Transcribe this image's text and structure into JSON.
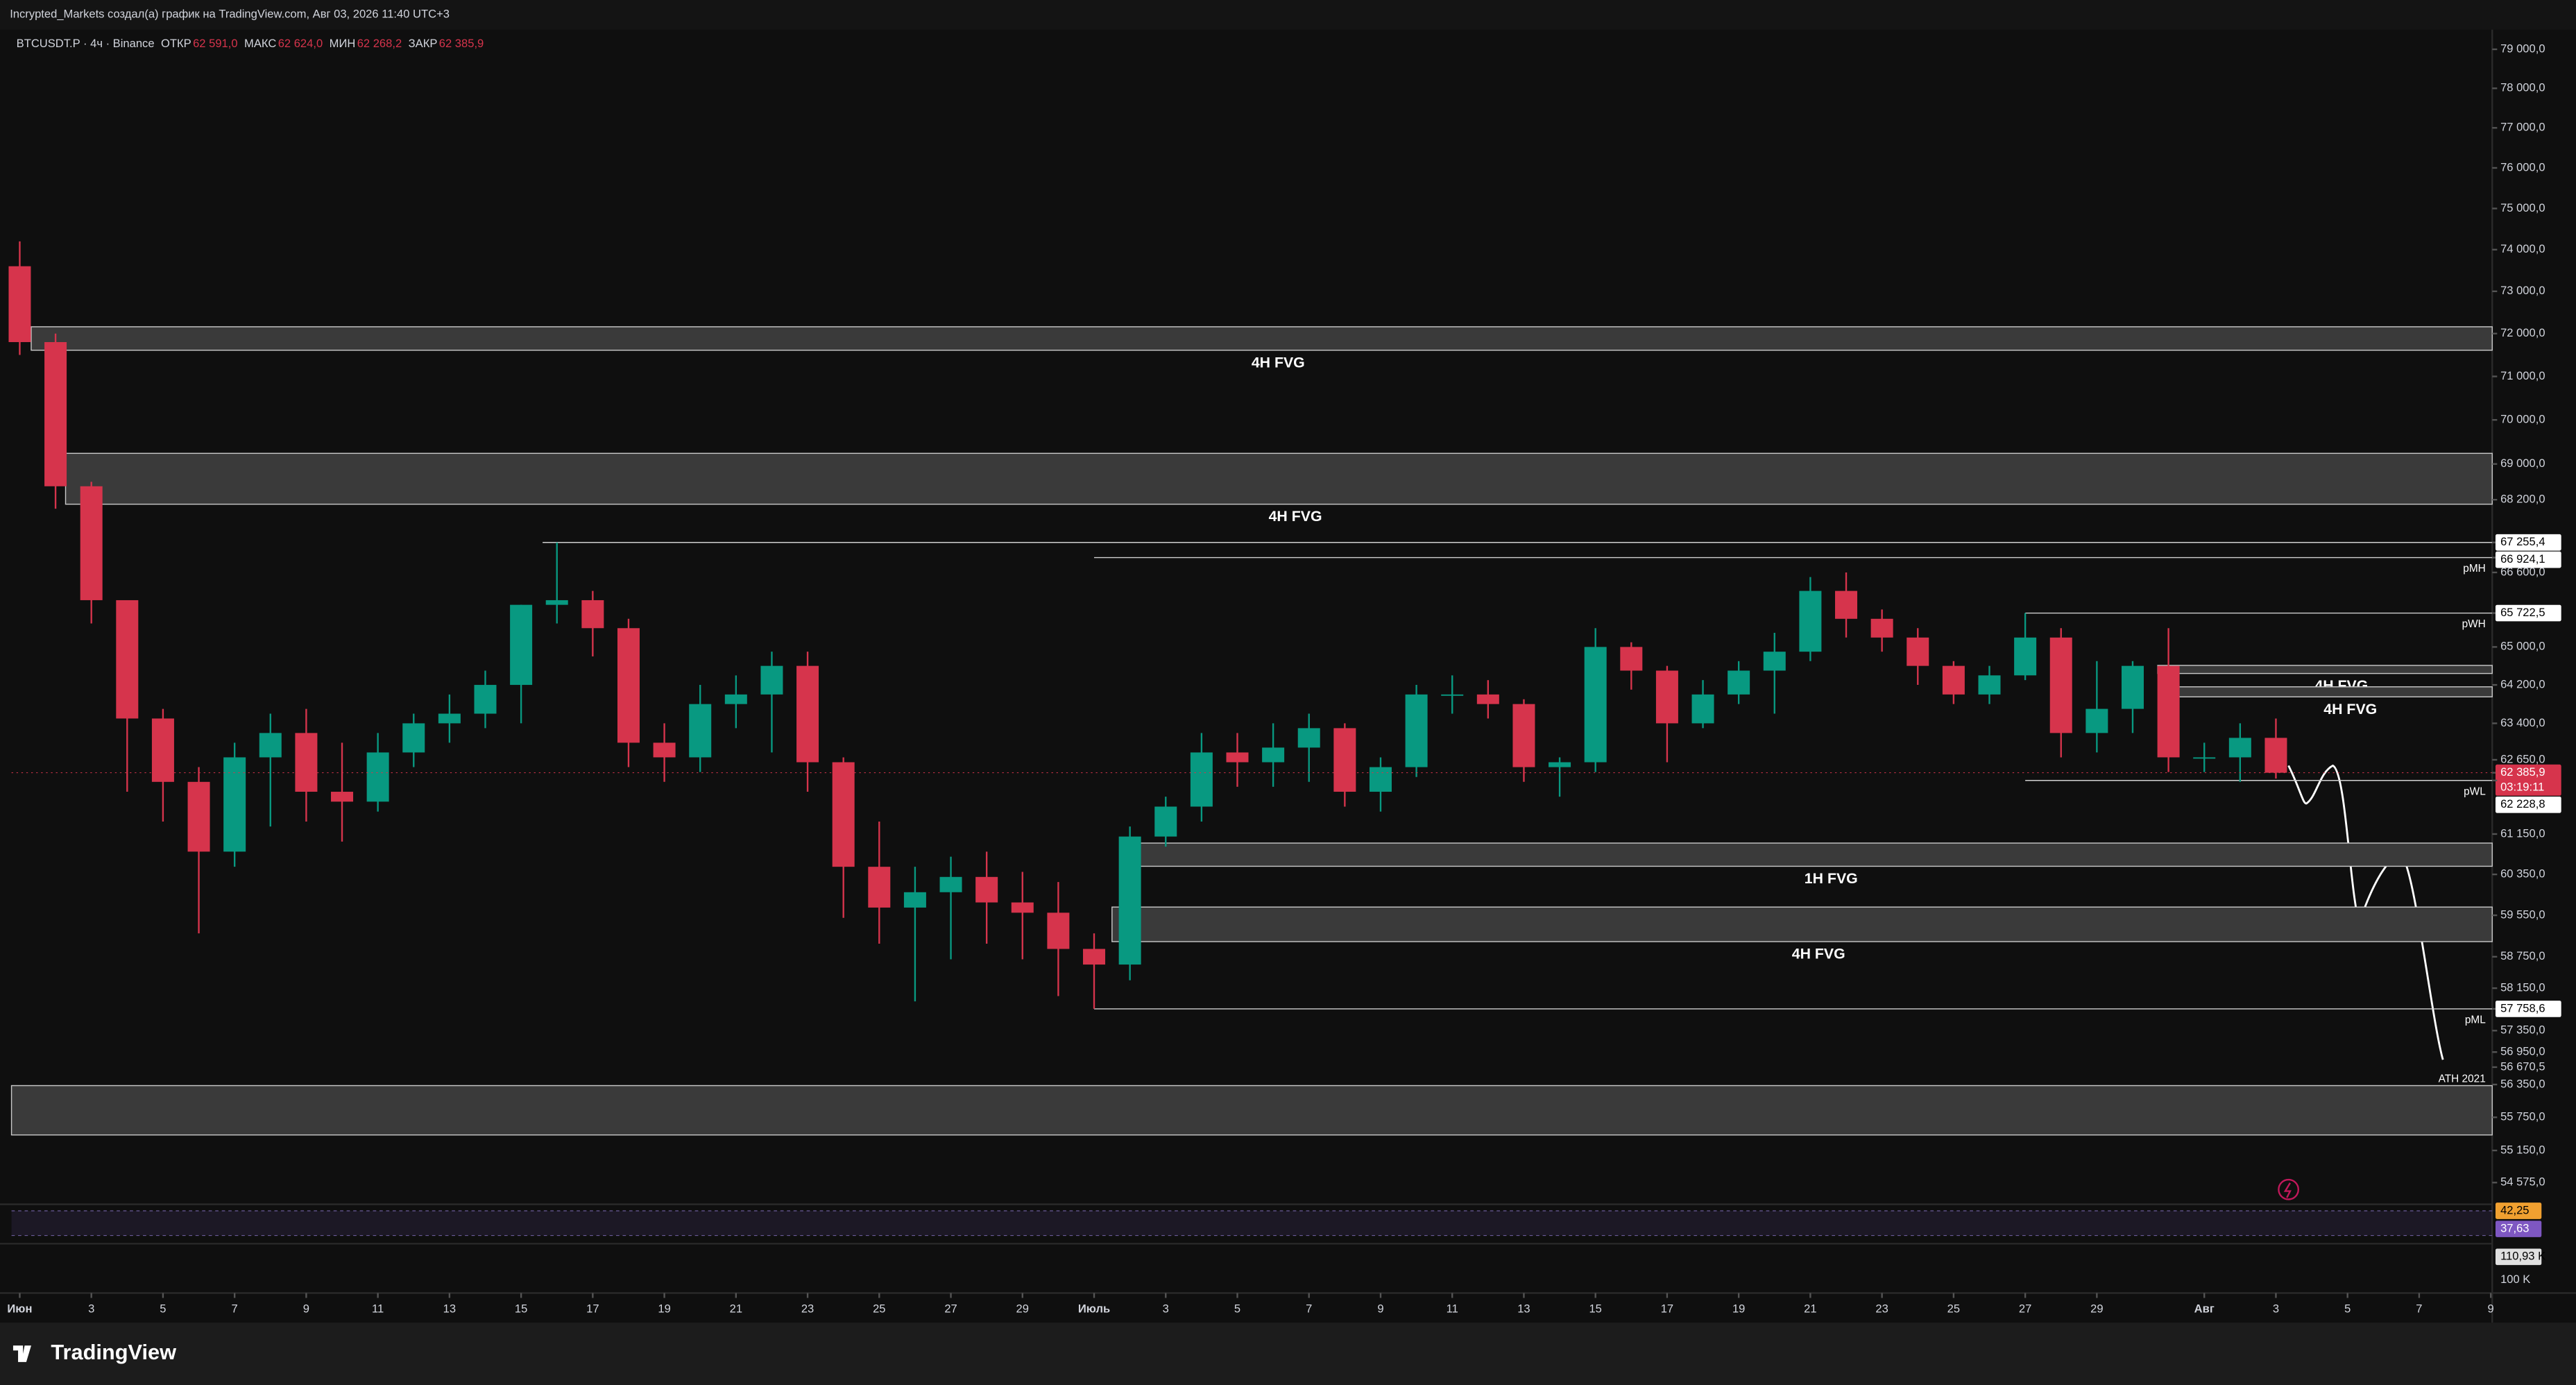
{
  "header": {
    "title": "Incrypted_Markets создал(а) график на TradingView.com, Авг 03, 2026 11:40 UTC+3"
  },
  "chart_data": {
    "type": "candlestick",
    "symbol": "BTCUSDT.P · 4ч · Binance",
    "ohlc_legend": [
      {
        "label": "ОТКР",
        "value": "62 591,0"
      },
      {
        "label": "МАКС",
        "value": "62 624,0"
      },
      {
        "label": "МИН",
        "value": "62 268,2"
      },
      {
        "label": "ЗАКР",
        "value": "62 385,9"
      }
    ],
    "log_scale": true,
    "up_color": "#089981",
    "down_color": "#d6344c",
    "x": [
      0,
      1,
      2,
      3,
      4,
      5,
      6,
      7,
      8,
      9,
      10,
      11,
      12,
      13,
      14,
      15,
      16,
      17,
      18,
      19,
      20,
      21,
      22,
      23,
      24,
      25,
      26,
      27,
      28,
      29,
      30,
      31,
      32,
      33,
      34,
      35,
      36,
      37,
      38,
      39,
      40,
      41,
      42,
      43,
      44,
      45,
      46,
      47,
      48,
      49,
      50,
      51,
      52,
      53,
      54,
      55,
      56,
      57,
      58,
      59,
      60,
      61,
      62,
      63
    ],
    "open": [
      73600,
      71800,
      68500,
      66000,
      63500,
      62200,
      60800,
      62700,
      63200,
      62000,
      61800,
      62800,
      63400,
      63600,
      64200,
      65900,
      66000,
      65400,
      63000,
      62700,
      63800,
      64000,
      64600,
      62600,
      60500,
      59700,
      60000,
      60300,
      59800,
      59600,
      58900,
      58600,
      61100,
      61700,
      62800,
      62600,
      62900,
      63300,
      62000,
      62500,
      64000,
      64000,
      63800,
      62500,
      62600,
      65000,
      64500,
      63400,
      64000,
      64500,
      64900,
      66200,
      65600,
      65200,
      64600,
      64000,
      64400,
      65200,
      63200,
      63700,
      64600,
      62700,
      62700,
      63100
    ],
    "high": [
      74200,
      72000,
      68600,
      66000,
      63700,
      62500,
      63000,
      63600,
      63700,
      63000,
      63200,
      63600,
      64000,
      64500,
      65900,
      67255.4,
      66200,
      65600,
      63400,
      64200,
      64400,
      64900,
      64900,
      62700,
      61400,
      60500,
      60700,
      60800,
      60400,
      60200,
      59200,
      61300,
      61900,
      63200,
      63200,
      63400,
      63600,
      63400,
      62700,
      64200,
      64400,
      64300,
      63900,
      62700,
      65400,
      65100,
      64600,
      64300,
      64700,
      65300,
      66500,
      66600,
      65800,
      65400,
      64700,
      64600,
      65722.5,
      65400,
      64700,
      64700,
      65400,
      63000,
      63400,
      63500
    ],
    "low": [
      71500,
      68000,
      65500,
      62000,
      61400,
      59200,
      60500,
      61300,
      61400,
      61000,
      61600,
      62500,
      63000,
      63300,
      63400,
      65500,
      64800,
      62500,
      62200,
      62400,
      63300,
      62800,
      62000,
      59500,
      59000,
      57900,
      58700,
      59000,
      58700,
      58000,
      57758.6,
      58300,
      60900,
      61400,
      62100,
      62100,
      62200,
      61700,
      61600,
      62300,
      63600,
      63500,
      62200,
      61900,
      62400,
      64100,
      62600,
      63300,
      63800,
      63600,
      64700,
      65200,
      64900,
      64200,
      63800,
      63800,
      64300,
      62700,
      62800,
      63200,
      62400,
      62400,
      62200,
      62268.2
    ],
    "close": [
      71800,
      68500,
      66000,
      63500,
      62200,
      60800,
      62700,
      63200,
      62000,
      61800,
      62800,
      63400,
      63600,
      64200,
      65900,
      66000,
      65400,
      63000,
      62700,
      63800,
      64000,
      64600,
      62600,
      60500,
      59700,
      60000,
      60300,
      59800,
      59600,
      58900,
      58600,
      61100,
      61700,
      62800,
      62600,
      62900,
      63300,
      62000,
      62500,
      64000,
      64000,
      63800,
      62500,
      62600,
      65000,
      64500,
      63400,
      64000,
      64500,
      64900,
      66200,
      65600,
      65200,
      64600,
      64000,
      64400,
      65200,
      63200,
      63700,
      64600,
      62700,
      62700,
      63100,
      62385.9
    ],
    "xlim": [
      -0.23,
      69.04
    ],
    "xticks": [
      {
        "value": 0,
        "label": "Июн"
      },
      {
        "value": 2,
        "label": "3"
      },
      {
        "value": 4,
        "label": "5"
      },
      {
        "value": 6,
        "label": "7"
      },
      {
        "value": 8,
        "label": "9"
      },
      {
        "value": 10,
        "label": "11"
      },
      {
        "value": 12,
        "label": "13"
      },
      {
        "value": 14,
        "label": "15"
      },
      {
        "value": 16,
        "label": "17"
      },
      {
        "value": 18,
        "label": "19"
      },
      {
        "value": 20,
        "label": "21"
      },
      {
        "value": 22,
        "label": "23"
      },
      {
        "value": 24,
        "label": "25"
      },
      {
        "value": 26,
        "label": "27"
      },
      {
        "value": 28,
        "label": "29"
      },
      {
        "value": 30,
        "label": "Июль"
      },
      {
        "value": 32,
        "label": "3"
      },
      {
        "value": 34,
        "label": "5"
      },
      {
        "value": 36,
        "label": "7"
      },
      {
        "value": 38,
        "label": "9"
      },
      {
        "value": 40,
        "label": "11"
      },
      {
        "value": 42,
        "label": "13"
      },
      {
        "value": 44,
        "label": "15"
      },
      {
        "value": 46,
        "label": "17"
      },
      {
        "value": 48,
        "label": "19"
      },
      {
        "value": 50,
        "label": "21"
      },
      {
        "value": 52,
        "label": "23"
      },
      {
        "value": 54,
        "label": "25"
      },
      {
        "value": 56,
        "label": "27"
      },
      {
        "value": 58,
        "label": "29"
      },
      {
        "value": 61,
        "label": "Авг"
      },
      {
        "value": 63,
        "label": "3"
      },
      {
        "value": 65,
        "label": "5"
      },
      {
        "value": 67,
        "label": "7"
      },
      {
        "value": 69,
        "label": "9"
      }
    ],
    "ylim": [
      54190,
      79510
    ],
    "yticks": [
      {
        "value": 79000,
        "label": "79 000,0"
      },
      {
        "value": 78000,
        "label": "78 000,0"
      },
      {
        "value": 77000,
        "label": "77 000,0"
      },
      {
        "value": 76000,
        "label": "76 000,0"
      },
      {
        "value": 75000,
        "label": "75 000,0"
      },
      {
        "value": 74000,
        "label": "74 000,0"
      },
      {
        "value": 73000,
        "label": "73 000,0"
      },
      {
        "value": 72000,
        "label": "72 000,0"
      },
      {
        "value": 71000,
        "label": "71 000,0"
      },
      {
        "value": 70000,
        "label": "70 000,0"
      },
      {
        "value": 69000,
        "label": "69 000,0"
      },
      {
        "value": 68200,
        "label": "68 200,0"
      },
      {
        "value": 67255.4,
        "label": "67 255,4",
        "highlight": "white"
      },
      {
        "value": 66924.1,
        "label": "66 924,1",
        "highlight": "white"
      },
      {
        "value": 66600,
        "label": "66 600,0"
      },
      {
        "value": 65722.5,
        "label": "65 722,5",
        "highlight": "white"
      },
      {
        "value": 65000,
        "label": "65 000,0"
      },
      {
        "value": 64200,
        "label": "64 200,0"
      },
      {
        "value": 63400,
        "label": "63 400,0"
      },
      {
        "value": 62650,
        "label": "62 650,0"
      },
      {
        "value": 62385.9,
        "label": "62 385,9",
        "highlight": "red"
      },
      {
        "value": 62228.8,
        "label": "62 228,8",
        "highlight": "white"
      },
      {
        "value": 61150,
        "label": "61 150,0"
      },
      {
        "value": 60350,
        "label": "60 350,0"
      },
      {
        "value": 59550,
        "label": "59 550,0"
      },
      {
        "value": 58750,
        "label": "58 750,0"
      },
      {
        "value": 58150,
        "label": "58 150,0"
      },
      {
        "value": 57758.6,
        "label": "57 758,6",
        "highlight": "white"
      },
      {
        "value": 57350,
        "label": "57 350,0"
      },
      {
        "value": 56950,
        "label": "56 950,0"
      },
      {
        "value": 56670.5,
        "label": "56 670,5"
      },
      {
        "value": 56350,
        "label": "56 350,0"
      },
      {
        "value": 55750,
        "label": "55 750,0"
      },
      {
        "value": 55150,
        "label": "55 150,0"
      },
      {
        "value": 54575,
        "label": "54 575,0"
      }
    ],
    "countdown": "03:19:11",
    "zones": [
      {
        "label": "4H FVG",
        "top": 72160,
        "bottom": 71610,
        "x_start": 0.32
      },
      {
        "label": "4H FVG",
        "top": 69240,
        "bottom": 68100,
        "x_start": 1.28
      },
      {
        "label": "1H FVG",
        "top": 60970,
        "bottom": 60510,
        "x_start": 31.2
      },
      {
        "label": "4H FVG",
        "top": 59710,
        "bottom": 59040,
        "x_start": 30.5
      },
      {
        "label": "4H FVG",
        "top": 64610,
        "bottom": 64440,
        "x_start": 59.7
      },
      {
        "label": "4H FVG",
        "top": 64160,
        "bottom": 63950,
        "x_start": 60.2
      },
      {
        "top": 56330,
        "bottom": 55430,
        "x_start": -0.23
      }
    ],
    "levels": [
      {
        "value": 67255.4,
        "x_start": 14.6
      },
      {
        "label": "pMH",
        "value": 66924.1,
        "x_start": 30
      },
      {
        "label": "pWH",
        "value": 65722.5,
        "x_start": 56
      },
      {
        "label": "pWL",
        "value": 62228.8,
        "x_start": 56
      },
      {
        "label": "pML",
        "value": 57758.6,
        "x_start": 30
      }
    ],
    "annotation": "ATH 2021",
    "panes": {
      "rsi_labels": [
        "42,25",
        "37,63"
      ],
      "volume_labels": [
        "110,93 K",
        "100 K"
      ]
    }
  },
  "branding": "TradingView"
}
